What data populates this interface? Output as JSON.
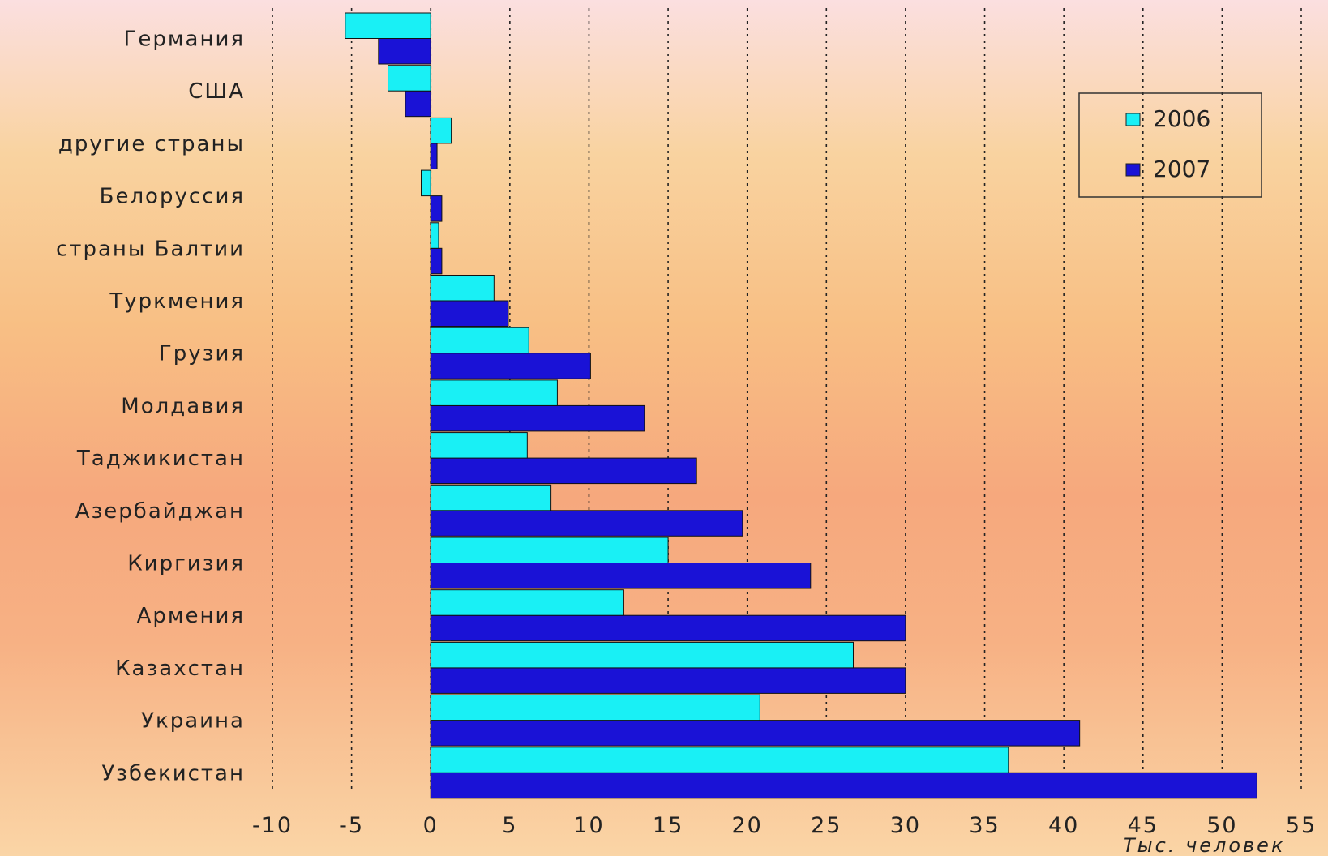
{
  "chart_data": {
    "type": "bar",
    "orientation": "horizontal",
    "categories": [
      "Германия",
      "США",
      "другие страны",
      "Белоруссия",
      "страны Балтии",
      "Туркмения",
      "Грузия",
      "Молдавия",
      "Таджикистан",
      "Азербайджан",
      "Киргизия",
      "Армения",
      "Казахстан",
      "Украина",
      "Узбекистан"
    ],
    "series": [
      {
        "name": "2006",
        "color": "#19f0f5",
        "values": [
          -5.4,
          -2.7,
          1.3,
          -0.6,
          0.5,
          4.0,
          6.2,
          8.0,
          6.1,
          7.6,
          15.0,
          12.2,
          26.7,
          20.8,
          36.5
        ]
      },
      {
        "name": "2007",
        "color": "#1a12d6",
        "values": [
          -3.3,
          -1.6,
          0.4,
          0.7,
          0.7,
          4.9,
          10.1,
          13.5,
          16.8,
          19.7,
          24.0,
          30.0,
          30.0,
          41.0,
          52.2
        ]
      }
    ],
    "xlim": [
      -10,
      55
    ],
    "x_ticks": [
      "-10",
      "-5",
      "0",
      "5",
      "10",
      "15",
      "20",
      "25",
      "30",
      "35",
      "40",
      "45",
      "50",
      "55"
    ],
    "xlabel": "Тыс. человек",
    "grid": "vertical dotted",
    "legend_position": "top-right"
  }
}
